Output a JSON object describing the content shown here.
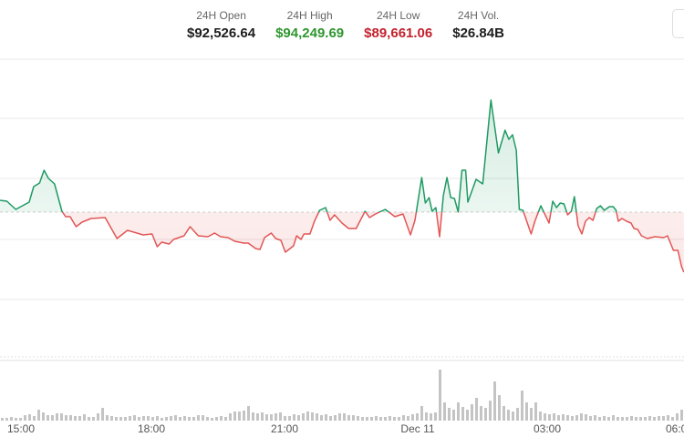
{
  "stats": {
    "open": {
      "label": "24H Open",
      "value": "$92,526.64"
    },
    "high": {
      "label": "24H High",
      "value": "$94,249.69"
    },
    "low": {
      "label": "24H Low",
      "value": "$89,661.06"
    },
    "volume": {
      "label": "24H Vol.",
      "value": "$26.84B"
    }
  },
  "colors": {
    "up": "#1f9a63",
    "down": "#e25555",
    "high_text": "#2e962e",
    "low_text": "#c3212d",
    "volume_bar": "#c4c4c4"
  },
  "chart_data": {
    "type": "line",
    "baseline": 92526.64,
    "baseline_style": "dashed",
    "fill": "area above/below baseline",
    "grid": true,
    "x_ticks": [
      "15:00",
      "18:00",
      "21:00",
      "Dec 11",
      "03:00",
      "06:00"
    ],
    "price": [
      [
        "14:32",
        92709
      ],
      [
        "14:41",
        92695
      ],
      [
        "14:53",
        92569
      ],
      [
        "15:11",
        92681
      ],
      [
        "15:17",
        92919
      ],
      [
        "15:25",
        92975
      ],
      [
        "15:31",
        93171
      ],
      [
        "15:37",
        93045
      ],
      [
        "15:45",
        92961
      ],
      [
        "15:55",
        92541
      ],
      [
        "16:00",
        92457
      ],
      [
        "16:06",
        92457
      ],
      [
        "16:14",
        92303
      ],
      [
        "16:22",
        92373
      ],
      [
        "16:34",
        92429
      ],
      [
        "16:53",
        92443
      ],
      [
        "17:09",
        92121
      ],
      [
        "17:23",
        92247
      ],
      [
        "17:44",
        92177
      ],
      [
        "17:56",
        92191
      ],
      [
        "18:03",
        91995
      ],
      [
        "18:09",
        92065
      ],
      [
        "18:19",
        92037
      ],
      [
        "18:25",
        92107
      ],
      [
        "18:39",
        92163
      ],
      [
        "18:47",
        92303
      ],
      [
        "18:58",
        92163
      ],
      [
        "19:11",
        92149
      ],
      [
        "19:20",
        92205
      ],
      [
        "19:28",
        92149
      ],
      [
        "19:38",
        92135
      ],
      [
        "19:47",
        92079
      ],
      [
        "19:59",
        92051
      ],
      [
        "20:05",
        92051
      ],
      [
        "20:15",
        91967
      ],
      [
        "20:21",
        91953
      ],
      [
        "20:27",
        92135
      ],
      [
        "20:36",
        92205
      ],
      [
        "20:42",
        92121
      ],
      [
        "20:49",
        92093
      ],
      [
        "20:55",
        91911
      ],
      [
        "21:06",
        92009
      ],
      [
        "21:10",
        92163
      ],
      [
        "21:16",
        92107
      ],
      [
        "21:20",
        92191
      ],
      [
        "21:28",
        92191
      ],
      [
        "21:34",
        92387
      ],
      [
        "21:41",
        92555
      ],
      [
        "21:49",
        92597
      ],
      [
        "21:55",
        92401
      ],
      [
        "22:01",
        92485
      ],
      [
        "22:11",
        92359
      ],
      [
        "22:20",
        92275
      ],
      [
        "22:30",
        92275
      ],
      [
        "22:42",
        92541
      ],
      [
        "22:48",
        92443
      ],
      [
        "22:56",
        92499
      ],
      [
        "23:09",
        92569
      ],
      [
        "23:22",
        92457
      ],
      [
        "23:33",
        92499
      ],
      [
        "23:43",
        92177
      ],
      [
        "23:49",
        92401
      ],
      [
        "23:58",
        93059
      ],
      [
        "00:03",
        92667
      ],
      [
        "00:08",
        92751
      ],
      [
        "00:12",
        92541
      ],
      [
        "00:17",
        92597
      ],
      [
        "00:22",
        92149
      ],
      [
        "00:27",
        92779
      ],
      [
        "00:32",
        93059
      ],
      [
        "00:37",
        92751
      ],
      [
        "00:42",
        92737
      ],
      [
        "00:47",
        92527
      ],
      [
        "00:52",
        93171
      ],
      [
        "00:57",
        93171
      ],
      [
        "01:00",
        92681
      ],
      [
        "01:11",
        93031
      ],
      [
        "01:20",
        92961
      ],
      [
        "01:31",
        94250
      ],
      [
        "01:41",
        93437
      ],
      [
        "01:50",
        93787
      ],
      [
        "01:55",
        93647
      ],
      [
        "02:00",
        93717
      ],
      [
        "02:05",
        93479
      ],
      [
        "02:09",
        92569
      ],
      [
        "02:14",
        92555
      ],
      [
        "02:25",
        92191
      ],
      [
        "02:30",
        92387
      ],
      [
        "02:38",
        92625
      ],
      [
        "02:49",
        92359
      ],
      [
        "02:54",
        92695
      ],
      [
        "02:59",
        92597
      ],
      [
        "03:04",
        92667
      ],
      [
        "03:09",
        92653
      ],
      [
        "03:14",
        92485
      ],
      [
        "03:19",
        92541
      ],
      [
        "03:23",
        92765
      ],
      [
        "03:28",
        92317
      ],
      [
        "03:33",
        92191
      ],
      [
        "03:38",
        92387
      ],
      [
        "03:43",
        92443
      ],
      [
        "03:48",
        92401
      ],
      [
        "03:53",
        92583
      ],
      [
        "03:58",
        92625
      ],
      [
        "04:03",
        92555
      ],
      [
        "04:10",
        92611
      ],
      [
        "04:15",
        92611
      ],
      [
        "04:19",
        92555
      ],
      [
        "04:22",
        92387
      ],
      [
        "04:27",
        92429
      ],
      [
        "04:33",
        92387
      ],
      [
        "04:39",
        92359
      ],
      [
        "04:43",
        92275
      ],
      [
        "04:48",
        92261
      ],
      [
        "04:53",
        92163
      ],
      [
        "05:01",
        92121
      ],
      [
        "05:11",
        92149
      ],
      [
        "05:23",
        92135
      ],
      [
        "05:28",
        92163
      ],
      [
        "05:36",
        91939
      ],
      [
        "05:42",
        91939
      ],
      [
        "05:47",
        91687
      ],
      [
        "05:50",
        91603
      ]
    ],
    "volume_relative": [
      3,
      3,
      4,
      3,
      3,
      6,
      7,
      5,
      12,
      9,
      6,
      6,
      8,
      8,
      6,
      6,
      5,
      5,
      7,
      4,
      4,
      8,
      14,
      6,
      5,
      4,
      4,
      4,
      5,
      6,
      4,
      5,
      5,
      4,
      5,
      3,
      4,
      5,
      6,
      4,
      5,
      4,
      4,
      6,
      6,
      4,
      3,
      4,
      5,
      4,
      8,
      10,
      10,
      11,
      16,
      9,
      8,
      9,
      7,
      7,
      8,
      9,
      5,
      5,
      7,
      6,
      8,
      10,
      9,
      8,
      6,
      7,
      5,
      6,
      8,
      8,
      6,
      6,
      5,
      4,
      4,
      4,
      5,
      4,
      4,
      5,
      4,
      4,
      6,
      5,
      7,
      8,
      16,
      9,
      8,
      9,
      56,
      20,
      14,
      12,
      20,
      15,
      12,
      18,
      25,
      16,
      14,
      22,
      43,
      28,
      16,
      12,
      10,
      14,
      33,
      20,
      14,
      20,
      10,
      8,
      7,
      8,
      6,
      7,
      6,
      5,
      6,
      8,
      7,
      5,
      6,
      4,
      5,
      4,
      6,
      4,
      4,
      4,
      5,
      4,
      4,
      4,
      5,
      4,
      5,
      5,
      6,
      4,
      8,
      12
    ]
  }
}
